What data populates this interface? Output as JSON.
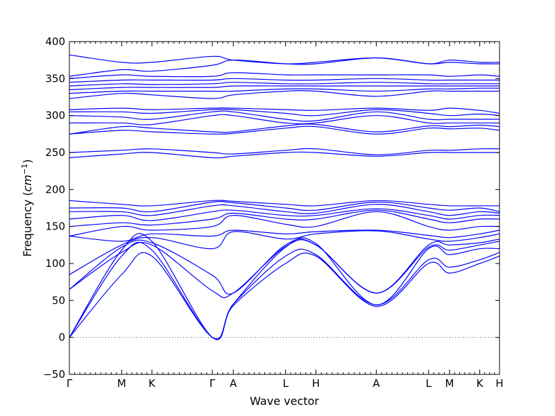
{
  "chart_data": {
    "type": "line",
    "title": "",
    "xlabel": "Wave vector",
    "ylabel": "Frequency",
    "ylabel_unit": "cm",
    "ylabel_unit_exponent": "−1",
    "ylim": [
      -50,
      400
    ],
    "yticks": [
      -50,
      0,
      50,
      100,
      150,
      200,
      250,
      300,
      350,
      400
    ],
    "xlim": [
      0,
      1
    ],
    "zero_line": true,
    "grid": false,
    "legend": "none",
    "line_color": "#0000ff",
    "high_symmetry_points": [
      {
        "label": "Γ",
        "pos": 0.0
      },
      {
        "label": "M",
        "pos": 0.1216
      },
      {
        "label": "K",
        "pos": 0.1919
      },
      {
        "label": "Γ",
        "pos": 0.3324
      },
      {
        "label": "A",
        "pos": 0.3811
      },
      {
        "label": "L",
        "pos": 0.5027
      },
      {
        "label": "H",
        "pos": 0.573
      },
      {
        "label": "A",
        "pos": 0.7135
      },
      {
        "label": "L",
        "pos": 0.8351
      },
      {
        "label": "M",
        "pos": 0.8838
      },
      {
        "label": "K",
        "pos": 0.9541
      },
      {
        "label": "H",
        "pos": 1.0
      }
    ],
    "series": [
      {
        "x": [
          0,
          0.1216,
          0.1919,
          0.3324,
          0.3811,
          0.5027,
          0.573,
          0.7135,
          0.8351,
          0.8838,
          0.9541,
          1
        ],
        "values": [
          0,
          85,
          110,
          0,
          43,
          100,
          110,
          42,
          100,
          87,
          100,
          110
        ]
      },
      {
        "x": [
          0,
          0.1216,
          0.1919,
          0.3324,
          0.3811,
          0.5027,
          0.573,
          0.7135,
          0.8351,
          0.8838,
          0.9541,
          1
        ],
        "values": [
          0,
          110,
          118,
          0,
          45,
          110,
          112,
          44,
          105,
          95,
          105,
          115
        ]
      },
      {
        "x": [
          0,
          0.1216,
          0.1919,
          0.3324,
          0.3811,
          0.5027,
          0.573,
          0.7135,
          0.8351,
          0.8838,
          0.9541,
          1
        ],
        "values": [
          0,
          118,
          130,
          0,
          45,
          122,
          127,
          44,
          120,
          112,
          120,
          120
        ]
      },
      {
        "x": [
          0,
          0.1216,
          0.1919,
          0.3324,
          0.3811,
          0.5027,
          0.573,
          0.7135,
          0.8351,
          0.8838,
          0.9541,
          1
        ],
        "values": [
          65,
          115,
          125,
          63,
          60,
          123,
          125,
          60,
          122,
          118,
          125,
          130
        ]
      },
      {
        "x": [
          0,
          0.1216,
          0.1919,
          0.3324,
          0.3811,
          0.5027,
          0.573,
          0.7135,
          0.8351,
          0.8838,
          0.9541,
          1
        ],
        "values": [
          65,
          122,
          128,
          84,
          60,
          125,
          125,
          60,
          125,
          125,
          128,
          133
        ]
      },
      {
        "x": [
          0,
          0.1216,
          0.1919,
          0.3324,
          0.3811,
          0.5027,
          0.573,
          0.7135,
          0.8351,
          0.8838,
          0.9541,
          1
        ],
        "values": [
          85,
          125,
          135,
          120,
          143,
          133,
          140,
          144,
          133,
          130,
          135,
          140
        ]
      },
      {
        "x": [
          0,
          0.1216,
          0.1919,
          0.3324,
          0.3811,
          0.5027,
          0.573,
          0.7135,
          0.8351,
          0.8838,
          0.9541,
          1
        ],
        "values": [
          137,
          130,
          140,
          137,
          145,
          140,
          143,
          145,
          138,
          135,
          140,
          145
        ]
      },
      {
        "x": [
          0,
          0.1216,
          0.1919,
          0.3324,
          0.3811,
          0.5027,
          0.573,
          0.7135,
          0.8351,
          0.8838,
          0.9541,
          1
        ],
        "values": [
          137,
          150,
          145,
          150,
          165,
          153,
          150,
          170,
          150,
          145,
          150,
          150
        ]
      },
      {
        "x": [
          0,
          0.1216,
          0.1919,
          0.3324,
          0.3811,
          0.5027,
          0.573,
          0.7135,
          0.8351,
          0.8838,
          0.9541,
          1
        ],
        "values": [
          150,
          155,
          152,
          160,
          168,
          160,
          160,
          172,
          160,
          155,
          160,
          160
        ]
      },
      {
        "x": [
          0,
          0.1216,
          0.1919,
          0.3324,
          0.3811,
          0.5027,
          0.573,
          0.7135,
          0.8351,
          0.8838,
          0.9541,
          1
        ],
        "values": [
          160,
          165,
          158,
          170,
          172,
          165,
          165,
          174,
          165,
          160,
          165,
          165
        ]
      },
      {
        "x": [
          0,
          0.1216,
          0.1919,
          0.3324,
          0.3811,
          0.5027,
          0.573,
          0.7135,
          0.8351,
          0.8838,
          0.9541,
          1
        ],
        "values": [
          170,
          170,
          165,
          178,
          178,
          170,
          168,
          180,
          170,
          165,
          170,
          168
        ]
      },
      {
        "x": [
          0,
          0.1216,
          0.1919,
          0.3324,
          0.3811,
          0.5027,
          0.573,
          0.7135,
          0.8351,
          0.8838,
          0.9541,
          1
        ],
        "values": [
          175,
          175,
          170,
          183,
          182,
          175,
          172,
          183,
          175,
          172,
          175,
          170
        ]
      },
      {
        "x": [
          0,
          0.1216,
          0.1919,
          0.3324,
          0.3811,
          0.5027,
          0.573,
          0.7135,
          0.8351,
          0.8838,
          0.9541,
          1
        ],
        "values": [
          185,
          180,
          178,
          185,
          184,
          180,
          178,
          185,
          180,
          178,
          178,
          178
        ]
      },
      {
        "x": [
          0,
          0.1216,
          0.1919,
          0.3324,
          0.3811,
          0.5027,
          0.573,
          0.7135,
          0.8351,
          0.8838,
          0.9541,
          1
        ],
        "values": [
          243,
          248,
          250,
          243,
          245,
          250,
          250,
          245,
          250,
          250,
          250,
          250
        ]
      },
      {
        "x": [
          0,
          0.1216,
          0.1919,
          0.3324,
          0.3811,
          0.5027,
          0.573,
          0.7135,
          0.8351,
          0.8838,
          0.9541,
          1
        ],
        "values": [
          250,
          253,
          255,
          250,
          248,
          253,
          255,
          247,
          253,
          253,
          255,
          255
        ]
      },
      {
        "x": [
          0,
          0.1216,
          0.1919,
          0.3324,
          0.3811,
          0.5027,
          0.573,
          0.7135,
          0.8351,
          0.8838,
          0.9541,
          1
        ],
        "values": [
          275,
          280,
          278,
          275,
          276,
          283,
          285,
          275,
          283,
          282,
          283,
          280
        ]
      },
      {
        "x": [
          0,
          0.1216,
          0.1919,
          0.3324,
          0.3811,
          0.5027,
          0.573,
          0.7135,
          0.8351,
          0.8838,
          0.9541,
          1
        ],
        "values": [
          275,
          285,
          283,
          278,
          278,
          286,
          288,
          278,
          286,
          285,
          287,
          285
        ]
      },
      {
        "x": [
          0,
          0.1216,
          0.1919,
          0.3324,
          0.3811,
          0.5027,
          0.573,
          0.7135,
          0.8351,
          0.8838,
          0.9541,
          1
        ],
        "values": [
          290,
          290,
          288,
          300,
          300,
          290,
          290,
          300,
          290,
          290,
          290,
          290
        ]
      },
      {
        "x": [
          0,
          0.1216,
          0.1919,
          0.3324,
          0.3811,
          0.5027,
          0.573,
          0.7135,
          0.8351,
          0.8838,
          0.9541,
          1
        ],
        "values": [
          300,
          298,
          295,
          305,
          305,
          295,
          293,
          305,
          295,
          295,
          295,
          295
        ]
      },
      {
        "x": [
          0,
          0.1216,
          0.1919,
          0.3324,
          0.3811,
          0.5027,
          0.573,
          0.7135,
          0.8351,
          0.8838,
          0.9541,
          1
        ],
        "values": [
          305,
          305,
          303,
          308,
          308,
          303,
          300,
          308,
          303,
          300,
          302,
          300
        ]
      },
      {
        "x": [
          0,
          0.1216,
          0.1919,
          0.3324,
          0.3811,
          0.5027,
          0.573,
          0.7135,
          0.8351,
          0.8838,
          0.9541,
          1
        ],
        "values": [
          308,
          310,
          308,
          310,
          310,
          308,
          307,
          310,
          307,
          310,
          307,
          303
        ]
      },
      {
        "x": [
          0,
          0.1216,
          0.1919,
          0.3324,
          0.3811,
          0.5027,
          0.573,
          0.7135,
          0.8351,
          0.8838,
          0.9541,
          1
        ],
        "values": [
          323,
          330,
          328,
          323,
          328,
          333,
          333,
          326,
          333,
          333,
          333,
          333
        ]
      },
      {
        "x": [
          0,
          0.1216,
          0.1919,
          0.3324,
          0.3811,
          0.5027,
          0.573,
          0.7135,
          0.8351,
          0.8838,
          0.9541,
          1
        ],
        "values": [
          330,
          333,
          333,
          333,
          333,
          336,
          336,
          333,
          336,
          336,
          337,
          337
        ]
      },
      {
        "x": [
          0,
          0.1216,
          0.1919,
          0.3324,
          0.3811,
          0.5027,
          0.573,
          0.7135,
          0.8351,
          0.8838,
          0.9541,
          1
        ],
        "values": [
          335,
          338,
          338,
          338,
          340,
          340,
          340,
          340,
          340,
          340,
          340,
          340
        ]
      },
      {
        "x": [
          0,
          0.1216,
          0.1919,
          0.3324,
          0.3811,
          0.5027,
          0.573,
          0.7135,
          0.8351,
          0.8838,
          0.9541,
          1
        ],
        "values": [
          340,
          343,
          342,
          343,
          345,
          343,
          343,
          345,
          343,
          343,
          343,
          343
        ]
      },
      {
        "x": [
          0,
          0.1216,
          0.1919,
          0.3324,
          0.3811,
          0.5027,
          0.573,
          0.7135,
          0.8351,
          0.8838,
          0.9541,
          1
        ],
        "values": [
          345,
          348,
          348,
          348,
          350,
          348,
          348,
          350,
          348,
          348,
          348,
          348
        ]
      },
      {
        "x": [
          0,
          0.1216,
          0.1919,
          0.3324,
          0.3811,
          0.5027,
          0.573,
          0.7135,
          0.8351,
          0.8838,
          0.9541,
          1
        ],
        "values": [
          350,
          355,
          353,
          353,
          358,
          355,
          355,
          355,
          355,
          353,
          355,
          353
        ]
      },
      {
        "x": [
          0,
          0.1216,
          0.1919,
          0.3324,
          0.3811,
          0.5027,
          0.573,
          0.7135,
          0.8351,
          0.8838,
          0.9541,
          1
        ],
        "values": [
          353,
          362,
          360,
          368,
          375,
          370,
          370,
          378,
          370,
          372,
          370,
          370
        ]
      },
      {
        "x": [
          0,
          0.1216,
          0.1919,
          0.3324,
          0.3811,
          0.5027,
          0.573,
          0.7135,
          0.8351,
          0.8838,
          0.9541,
          1
        ],
        "values": [
          382,
          372,
          372,
          380,
          375,
          370,
          372,
          378,
          370,
          375,
          372,
          372
        ]
      }
    ]
  }
}
